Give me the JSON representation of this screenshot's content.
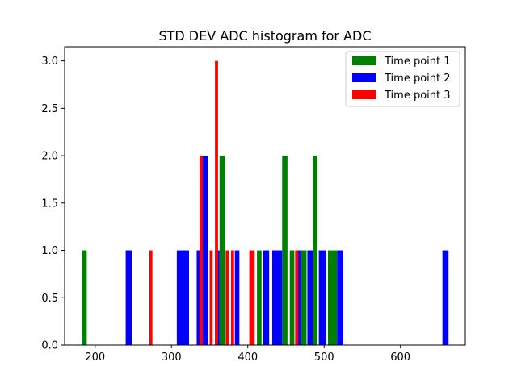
{
  "chart_data": {
    "type": "bar",
    "title": "STD DEV ADC histogram for ADC",
    "xlabel": "",
    "ylabel": "",
    "xlim": [
      160,
      685
    ],
    "ylim": [
      0,
      3.15
    ],
    "xticks": [
      200,
      300,
      400,
      500,
      600
    ],
    "yticks": [
      0.0,
      0.5,
      1.0,
      1.5,
      2.0,
      2.5,
      3.0
    ],
    "ytick_labels": [
      "0.0",
      "0.5",
      "1.0",
      "1.5",
      "2.0",
      "2.5",
      "3.0"
    ],
    "grid": false,
    "legend_position": "top-right",
    "series": [
      {
        "name": "Time point 1",
        "color": "#008000",
        "bars": [
          {
            "x0": 183,
            "x1": 189,
            "y": 1
          },
          {
            "x0": 363,
            "x1": 370,
            "y": 2
          },
          {
            "x0": 412,
            "x1": 418,
            "y": 1
          },
          {
            "x0": 445,
            "x1": 452,
            "y": 2
          },
          {
            "x0": 455,
            "x1": 461,
            "y": 1
          },
          {
            "x0": 470,
            "x1": 477,
            "y": 1
          },
          {
            "x0": 485,
            "x1": 491,
            "y": 2
          },
          {
            "x0": 505,
            "x1": 517,
            "y": 1
          }
        ]
      },
      {
        "name": "Time point 2",
        "color": "#0000ff",
        "bars": [
          {
            "x0": 240,
            "x1": 248,
            "y": 1
          },
          {
            "x0": 307,
            "x1": 323,
            "y": 1
          },
          {
            "x0": 333,
            "x1": 339,
            "y": 1
          },
          {
            "x0": 341,
            "x1": 348,
            "y": 2
          },
          {
            "x0": 357,
            "x1": 363,
            "y": 1
          },
          {
            "x0": 383,
            "x1": 389,
            "y": 1
          },
          {
            "x0": 420,
            "x1": 428,
            "y": 1
          },
          {
            "x0": 432,
            "x1": 445,
            "y": 1
          },
          {
            "x0": 463,
            "x1": 469,
            "y": 1
          },
          {
            "x0": 478,
            "x1": 485,
            "y": 1
          },
          {
            "x0": 493,
            "x1": 503,
            "y": 1
          },
          {
            "x0": 517,
            "x1": 525,
            "y": 1
          },
          {
            "x0": 655,
            "x1": 663,
            "y": 1
          }
        ]
      },
      {
        "name": "Time point 3",
        "color": "#ff0000",
        "bars": [
          {
            "x0": 271,
            "x1": 275,
            "y": 1
          },
          {
            "x0": 337,
            "x1": 341,
            "y": 2
          },
          {
            "x0": 350,
            "x1": 354,
            "y": 1
          },
          {
            "x0": 357,
            "x1": 361,
            "y": 3
          },
          {
            "x0": 371,
            "x1": 375,
            "y": 1
          },
          {
            "x0": 378,
            "x1": 382,
            "y": 1
          },
          {
            "x0": 402,
            "x1": 409,
            "y": 1
          },
          {
            "x0": 462,
            "x1": 466,
            "y": 1
          }
        ]
      }
    ]
  }
}
